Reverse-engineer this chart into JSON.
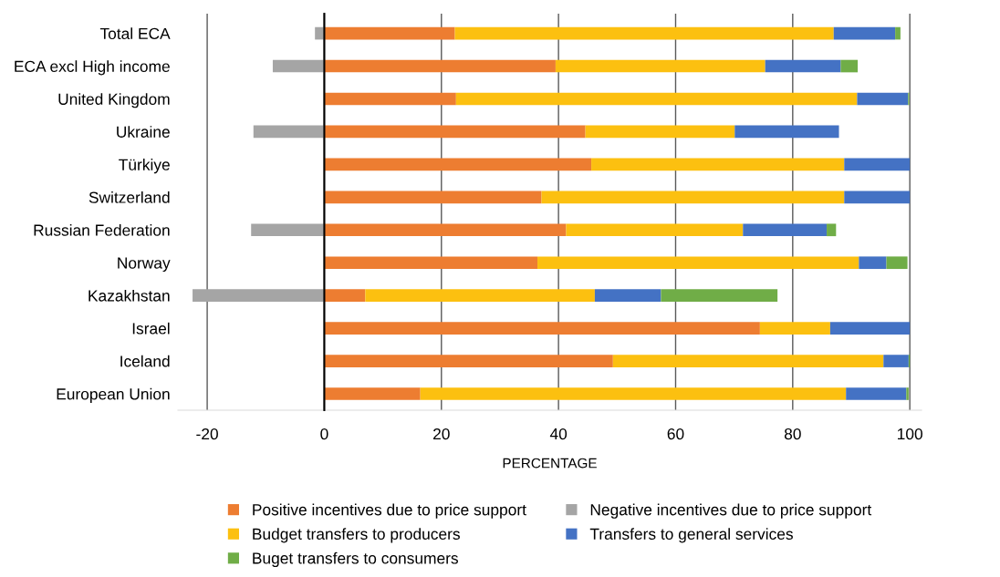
{
  "chart_data": {
    "type": "bar",
    "orientation": "horizontal",
    "stacked": true,
    "categories": [
      "Total ECA",
      "ECA excl High income",
      "United Kingdom",
      "Ukraine",
      "Türkiye",
      "Switzerland",
      "Russian Federation",
      "Norway",
      "Kazakhstan",
      "Israel",
      "Iceland",
      "European Union"
    ],
    "series": [
      {
        "name": "Positive incentives due to price support",
        "color": "#ed7d31",
        "values": [
          22.3,
          39.5,
          22.5,
          44.6,
          45.6,
          37.1,
          41.3,
          36.4,
          7.0,
          74.4,
          49.3,
          16.4
        ]
      },
      {
        "name": "Negative incentives due to price support",
        "color": "#a5a5a5",
        "values": [
          -1.6,
          -8.8,
          null,
          -12.1,
          null,
          null,
          -12.5,
          null,
          -22.5,
          null,
          null,
          null
        ]
      },
      {
        "name": "Budget transfers to producers",
        "color": "#fcc010",
        "values": [
          64.7,
          35.8,
          68.5,
          25.5,
          43.2,
          51.7,
          30.2,
          54.9,
          39.2,
          12.0,
          46.2,
          72.7
        ]
      },
      {
        "name": "Transfers to general services",
        "color": "#4472c4",
        "values": [
          10.5,
          12.9,
          8.7,
          17.8,
          11.2,
          11.2,
          14.3,
          4.7,
          11.3,
          13.6,
          4.3,
          10.3
        ]
      },
      {
        "name": "Buget transfers to consumers",
        "color": "#70ad47",
        "values": [
          0.9,
          2.9,
          0.2,
          0,
          0,
          0,
          1.6,
          3.6,
          19.9,
          0,
          0.2,
          0.4
        ]
      }
    ],
    "xlabel": "PERCENTAGE",
    "xlim": [
      -25,
      102
    ],
    "xticks": [
      -20,
      0,
      20,
      40,
      60,
      80,
      100
    ],
    "grid": "x",
    "legend": "bottom"
  }
}
